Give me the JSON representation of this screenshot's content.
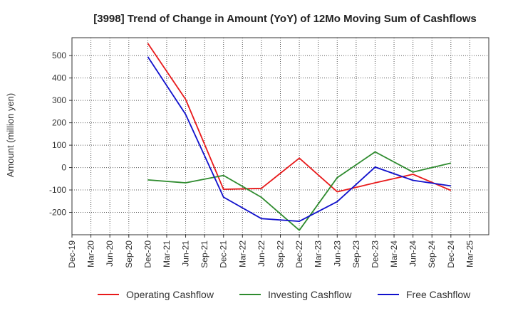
{
  "chart_data": {
    "type": "line",
    "title": "[3998]  Trend of Change in Amount (YoY) of 12Mo Moving Sum of Cashflows",
    "xlabel": "",
    "ylabel": "Amount (million yen)",
    "categories": [
      "Dec-19",
      "Mar-20",
      "Jun-20",
      "Sep-20",
      "Dec-20",
      "Mar-21",
      "Jun-21",
      "Sep-21",
      "Dec-21",
      "Mar-22",
      "Jun-22",
      "Sep-22",
      "Dec-22",
      "Mar-23",
      "Jun-23",
      "Sep-23",
      "Dec-23",
      "Mar-24",
      "Jun-24",
      "Sep-24",
      "Dec-24",
      "Mar-25"
    ],
    "ylim": [
      -300,
      580
    ],
    "yticks": [
      -200,
      -100,
      0,
      100,
      200,
      300,
      400,
      500
    ],
    "grid": true,
    "legend_position": "bottom",
    "series": [
      {
        "name": "Operating Cashflow",
        "color": "#e8191a",
        "values": [
          null,
          null,
          null,
          null,
          555,
          null,
          305,
          null,
          -97,
          null,
          -93,
          null,
          42,
          null,
          -108,
          null,
          -68,
          null,
          -30,
          null,
          -102,
          null
        ]
      },
      {
        "name": "Investing Cashflow",
        "color": "#2e8b2e",
        "values": [
          null,
          null,
          null,
          null,
          -55,
          null,
          -68,
          null,
          -35,
          null,
          -133,
          null,
          -280,
          null,
          -45,
          null,
          70,
          null,
          -20,
          null,
          20,
          null
        ]
      },
      {
        "name": "Free Cashflow",
        "color": "#1010cc",
        "values": [
          null,
          null,
          null,
          null,
          495,
          null,
          238,
          null,
          -132,
          null,
          -228,
          null,
          -240,
          null,
          -152,
          null,
          2,
          null,
          -57,
          null,
          -82,
          null
        ]
      }
    ]
  }
}
